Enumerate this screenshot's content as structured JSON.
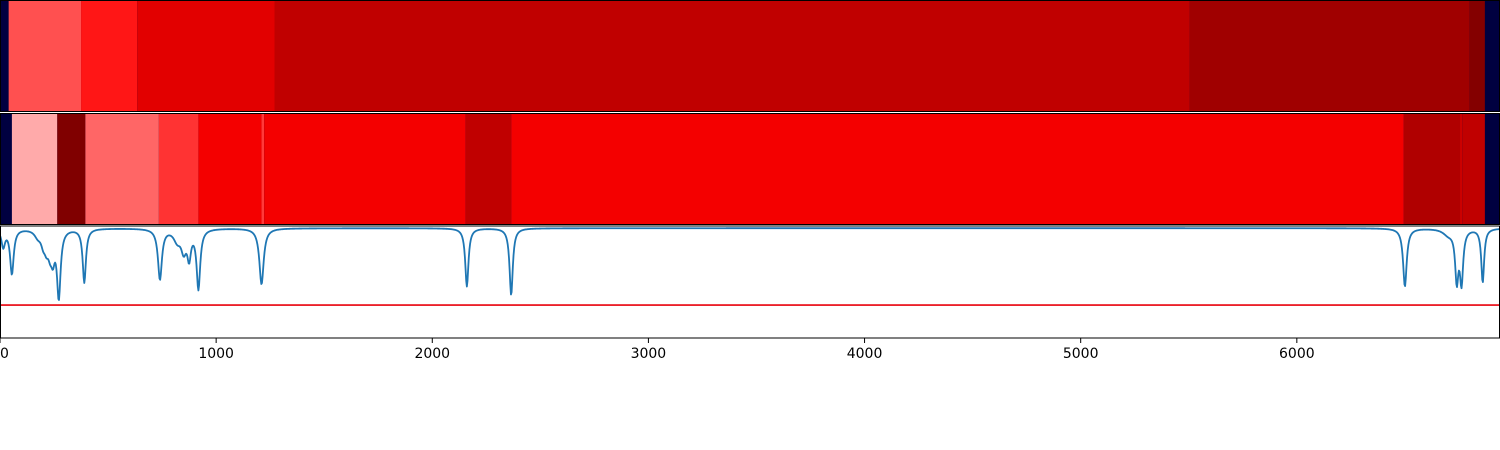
{
  "chart_data": [
    {
      "type": "heatmap",
      "colormap": "seismic",
      "background_color": "#000040",
      "x": {
        "min": 0,
        "max": 6940
      },
      "segments": [
        {
          "start": 40,
          "end": 375,
          "color": "#ff5050"
        },
        {
          "start": 375,
          "end": 635,
          "color": "#ff1616"
        },
        {
          "start": 635,
          "end": 1270,
          "color": "#e20000"
        },
        {
          "start": 1270,
          "end": 5505,
          "color": "#c00000"
        },
        {
          "start": 5505,
          "end": 6800,
          "color": "#a00000"
        },
        {
          "start": 6800,
          "end": 6870,
          "color": "#840000"
        }
      ]
    },
    {
      "type": "heatmap",
      "colormap": "seismic",
      "background_color": "#000040",
      "x": {
        "min": 0,
        "max": 6940
      },
      "segments": [
        {
          "start": 55,
          "end": 265,
          "color": "#ffaaaa"
        },
        {
          "start": 265,
          "end": 395,
          "color": "#800000"
        },
        {
          "start": 395,
          "end": 735,
          "color": "#ff6666"
        },
        {
          "start": 735,
          "end": 918,
          "color": "#ff3333"
        },
        {
          "start": 918,
          "end": 1210,
          "color": "#f40000"
        },
        {
          "start": 1210,
          "end": 1222,
          "color": "#ff3a3a"
        },
        {
          "start": 1222,
          "end": 2155,
          "color": "#f40000"
        },
        {
          "start": 2155,
          "end": 2365,
          "color": "#c00000"
        },
        {
          "start": 2365,
          "end": 6495,
          "color": "#f40000"
        },
        {
          "start": 6495,
          "end": 6755,
          "color": "#b00000"
        },
        {
          "start": 6755,
          "end": 6765,
          "color": "#cc0000"
        },
        {
          "start": 6765,
          "end": 6870,
          "color": "#c00000"
        }
      ]
    },
    {
      "type": "line",
      "x": {
        "min": 0,
        "max": 6940
      },
      "ylim": [
        -1.0,
        0.02
      ],
      "threshold": {
        "y": -0.7,
        "color": "#e8000b"
      },
      "line_color": "#1f77b4",
      "xticks": [
        0,
        1000,
        2000,
        3000,
        4000,
        5000,
        6000
      ],
      "xtick_labels": [
        "0",
        "1000",
        "2000",
        "3000",
        "4000",
        "5000",
        "6000"
      ],
      "baseline": 0.0,
      "dips": [
        {
          "x": 15,
          "depth": -0.16,
          "width": 10
        },
        {
          "x": 55,
          "depth": -0.41,
          "width": 10
        },
        {
          "x": 175,
          "depth": -0.06,
          "width": 18
        },
        {
          "x": 200,
          "depth": -0.1,
          "width": 12
        },
        {
          "x": 215,
          "depth": -0.13,
          "width": 12
        },
        {
          "x": 232,
          "depth": -0.16,
          "width": 12
        },
        {
          "x": 245,
          "depth": -0.2,
          "width": 10
        },
        {
          "x": 272,
          "depth": -0.61,
          "width": 10
        },
        {
          "x": 390,
          "depth": -0.49,
          "width": 9
        },
        {
          "x": 740,
          "depth": -0.46,
          "width": 11
        },
        {
          "x": 820,
          "depth": -0.1,
          "width": 20
        },
        {
          "x": 850,
          "depth": -0.18,
          "width": 14
        },
        {
          "x": 875,
          "depth": -0.24,
          "width": 10
        },
        {
          "x": 918,
          "depth": -0.54,
          "width": 10
        },
        {
          "x": 1210,
          "depth": -0.51,
          "width": 12
        },
        {
          "x": 2160,
          "depth": -0.53,
          "width": 9
        },
        {
          "x": 2365,
          "depth": -0.61,
          "width": 9
        },
        {
          "x": 6500,
          "depth": -0.53,
          "width": 10
        },
        {
          "x": 6700,
          "depth": -0.05,
          "width": 28
        },
        {
          "x": 6740,
          "depth": -0.45,
          "width": 9
        },
        {
          "x": 6762,
          "depth": -0.47,
          "width": 9
        },
        {
          "x": 6860,
          "depth": -0.49,
          "width": 8
        }
      ]
    }
  ]
}
